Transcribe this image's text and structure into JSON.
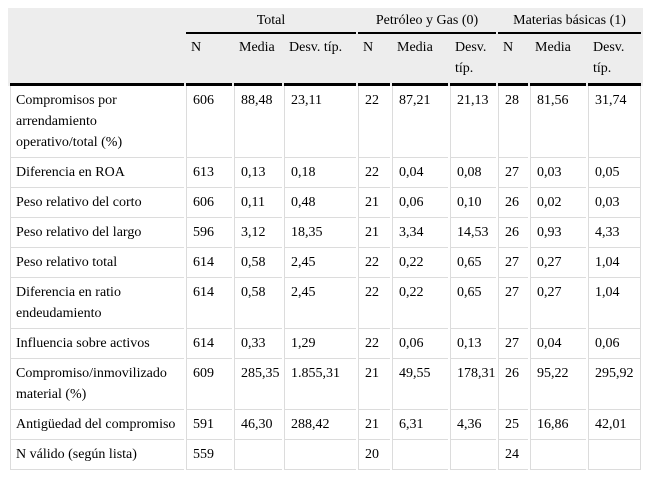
{
  "table": {
    "colors": {
      "header_bg": "#ededed",
      "grid_line": "#dcdcdc",
      "rule_line": "#000000",
      "text": "#000000"
    },
    "col_groups": [
      {
        "label": "Total",
        "subcols": [
          "N",
          "Media",
          "Desv. típ."
        ]
      },
      {
        "label": "Petróleo y Gas (0)",
        "subcols": [
          "N",
          "Media",
          "Desv. típ."
        ]
      },
      {
        "label": "Materias básicas (1)",
        "subcols": [
          "N",
          "Media",
          "Desv. típ."
        ]
      }
    ],
    "rows": [
      {
        "label": "Compromisos por arrendamiento operativo/total (%)",
        "values": [
          "606",
          "88,48",
          "23,11",
          "22",
          "87,21",
          "21,13",
          "28",
          "81,56",
          "31,74"
        ]
      },
      {
        "label": "Diferencia en ROA",
        "values": [
          "613",
          "0,13",
          "0,18",
          "22",
          "0,04",
          "0,08",
          "27",
          "0,03",
          "0,05"
        ]
      },
      {
        "label": "Peso relativo del corto",
        "values": [
          "606",
          "0,11",
          "0,48",
          "21",
          "0,06",
          "0,10",
          "26",
          "0,02",
          "0,03"
        ]
      },
      {
        "label": "Peso relativo del largo",
        "values": [
          "596",
          "3,12",
          "18,35",
          "21",
          "3,34",
          "14,53",
          "26",
          "0,93",
          "4,33"
        ]
      },
      {
        "label": "Peso relativo total",
        "values": [
          "614",
          "0,58",
          "2,45",
          "22",
          "0,22",
          "0,65",
          "27",
          "0,27",
          "1,04"
        ]
      },
      {
        "label": "Diferencia en ratio endeudamiento",
        "values": [
          "614",
          "0,58",
          "2,45",
          "22",
          "0,22",
          "0,65",
          "27",
          "0,27",
          "1,04"
        ]
      },
      {
        "label": "Influencia sobre activos",
        "values": [
          "614",
          "0,33",
          "1,29",
          "22",
          "0,06",
          "0,13",
          "27",
          "0,04",
          "0,06"
        ]
      },
      {
        "label": "Compromiso/inmovilizado material (%)",
        "values": [
          "609",
          "285,35",
          "1.855,31",
          "21",
          "49,55",
          "178,31",
          "26",
          "95,22",
          "295,92"
        ]
      },
      {
        "label": "Antigüedad del compromiso",
        "values": [
          "591",
          "46,30",
          "288,42",
          "21",
          "6,31",
          "4,36",
          "25",
          "16,86",
          "42,01"
        ]
      },
      {
        "label": "N válido (según lista)",
        "values": [
          "559",
          "",
          "",
          "20",
          "",
          "",
          "24",
          "",
          ""
        ]
      }
    ]
  }
}
